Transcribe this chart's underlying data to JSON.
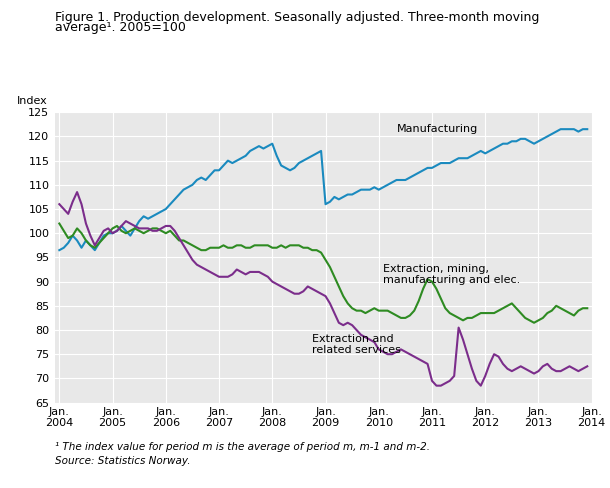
{
  "title_line1": "Figure 1. Production development. Seasonally adjusted. Three-month moving",
  "title_line2": "average¹. 2005=100",
  "ylabel": "Index",
  "footnote_line1": "¹ The index value for period m is the average of period m, m-1 and m-2.",
  "footnote_line2": "Source: Statistics Norway.",
  "ylim": [
    65,
    125
  ],
  "yticks": [
    65,
    70,
    75,
    80,
    85,
    90,
    95,
    100,
    105,
    110,
    115,
    120,
    125
  ],
  "xtick_labels": [
    "Jan.\n2004",
    "Jan.\n2005",
    "Jan.\n2006",
    "Jan.\n2007",
    "Jan.\n2008",
    "Jan.\n2009",
    "Jan.\n2010",
    "Jan.\n2011",
    "Jan.\n2012",
    "Jan.\n2013",
    "Jan.\n2014"
  ],
  "colors": {
    "manufacturing": "#1a8abf",
    "extraction_mining": "#2e8b22",
    "extraction_services": "#7b2d8b"
  },
  "label_manufacturing": "Manufacturing",
  "label_extraction_mining": "Extraction, mining,\nmanufacturing and elec.",
  "label_extraction_services": "Extraction and\nrelated services",
  "background_color": "#e8e8e8",
  "grid_color": "#ffffff",
  "manufacturing": [
    96.5,
    97.0,
    98.0,
    99.5,
    98.5,
    97.0,
    98.5,
    97.5,
    96.5,
    98.0,
    99.5,
    100.0,
    100.0,
    100.5,
    101.5,
    100.5,
    99.5,
    101.0,
    102.5,
    103.5,
    103.0,
    103.5,
    104.0,
    104.5,
    105.0,
    106.0,
    107.0,
    108.0,
    109.0,
    109.5,
    110.0,
    111.0,
    111.5,
    111.0,
    112.0,
    113.0,
    113.0,
    114.0,
    115.0,
    114.5,
    115.0,
    115.5,
    116.0,
    117.0,
    117.5,
    118.0,
    117.5,
    118.0,
    118.5,
    116.0,
    114.0,
    113.5,
    113.0,
    113.5,
    114.5,
    115.0,
    115.5,
    116.0,
    116.5,
    117.0,
    106.0,
    106.5,
    107.5,
    107.0,
    107.5,
    108.0,
    108.0,
    108.5,
    109.0,
    109.0,
    109.0,
    109.5,
    109.0,
    109.5,
    110.0,
    110.5,
    111.0,
    111.0,
    111.0,
    111.5,
    112.0,
    112.5,
    113.0,
    113.5,
    113.5,
    114.0,
    114.5,
    114.5,
    114.5,
    115.0,
    115.5,
    115.5,
    115.5,
    116.0,
    116.5,
    117.0,
    116.5,
    117.0,
    117.5,
    118.0,
    118.5,
    118.5,
    119.0,
    119.0,
    119.5,
    119.5,
    119.0,
    118.5,
    119.0,
    119.5,
    120.0,
    120.5,
    121.0,
    121.5,
    121.5,
    121.5,
    121.5,
    121.0,
    121.5,
    121.5
  ],
  "extraction_mining": [
    102.0,
    100.5,
    99.0,
    99.5,
    101.0,
    100.0,
    98.5,
    97.5,
    97.0,
    98.0,
    99.0,
    100.0,
    101.0,
    101.5,
    100.5,
    100.0,
    100.5,
    101.0,
    100.5,
    100.0,
    100.5,
    101.0,
    101.0,
    100.5,
    100.0,
    100.5,
    99.5,
    98.5,
    98.5,
    98.0,
    97.5,
    97.0,
    96.5,
    96.5,
    97.0,
    97.0,
    97.0,
    97.5,
    97.0,
    97.0,
    97.5,
    97.5,
    97.0,
    97.0,
    97.5,
    97.5,
    97.5,
    97.5,
    97.0,
    97.0,
    97.5,
    97.0,
    97.5,
    97.5,
    97.5,
    97.0,
    97.0,
    96.5,
    96.5,
    96.0,
    94.5,
    93.0,
    91.0,
    89.0,
    87.0,
    85.5,
    84.5,
    84.0,
    84.0,
    83.5,
    84.0,
    84.5,
    84.0,
    84.0,
    84.0,
    83.5,
    83.0,
    82.5,
    82.5,
    83.0,
    84.0,
    86.0,
    88.5,
    90.5,
    90.0,
    88.5,
    86.5,
    84.5,
    83.5,
    83.0,
    82.5,
    82.0,
    82.5,
    82.5,
    83.0,
    83.5,
    83.5,
    83.5,
    83.5,
    84.0,
    84.5,
    85.0,
    85.5,
    84.5,
    83.5,
    82.5,
    82.0,
    81.5,
    82.0,
    82.5,
    83.5,
    84.0,
    85.0,
    84.5,
    84.0,
    83.5,
    83.0,
    84.0,
    84.5,
    84.5
  ],
  "extraction_services": [
    106.0,
    105.0,
    104.0,
    106.5,
    108.5,
    106.0,
    102.0,
    99.5,
    97.5,
    99.0,
    100.5,
    101.0,
    100.0,
    100.5,
    101.5,
    102.5,
    102.0,
    101.5,
    101.0,
    101.0,
    101.0,
    100.5,
    100.5,
    101.0,
    101.5,
    101.5,
    100.5,
    99.0,
    97.5,
    96.0,
    94.5,
    93.5,
    93.0,
    92.5,
    92.0,
    91.5,
    91.0,
    91.0,
    91.0,
    91.5,
    92.5,
    92.0,
    91.5,
    92.0,
    92.0,
    92.0,
    91.5,
    91.0,
    90.0,
    89.5,
    89.0,
    88.5,
    88.0,
    87.5,
    87.5,
    88.0,
    89.0,
    88.5,
    88.0,
    87.5,
    87.0,
    85.5,
    83.5,
    81.5,
    81.0,
    81.5,
    81.0,
    80.0,
    79.0,
    78.5,
    78.0,
    77.5,
    76.0,
    75.5,
    75.0,
    75.0,
    75.5,
    76.0,
    75.5,
    75.0,
    74.5,
    74.0,
    73.5,
    73.0,
    69.5,
    68.5,
    68.5,
    69.0,
    69.5,
    70.5,
    80.5,
    78.0,
    75.0,
    72.0,
    69.5,
    68.5,
    70.5,
    73.0,
    75.0,
    74.5,
    73.0,
    72.0,
    71.5,
    72.0,
    72.5,
    72.0,
    71.5,
    71.0,
    71.5,
    72.5,
    73.0,
    72.0,
    71.5,
    71.5,
    72.0,
    72.5,
    72.0,
    71.5,
    72.0,
    72.5
  ]
}
